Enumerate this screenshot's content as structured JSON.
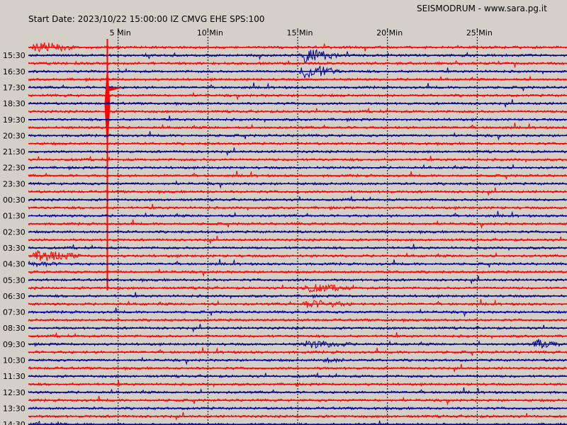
{
  "header": {
    "site": "SEISMODRUM - www.sara.pg.it",
    "start": "Start Date: 2023/10/22 15:00:00 IZ CMVG EHE SPS:100"
  },
  "colors": {
    "background": "#d4d0c8",
    "trace_a": "#ff0000",
    "trace_b": "#00008b",
    "grid": "#000000"
  },
  "chart_data": {
    "type": "line",
    "chart_kind": "helicorder",
    "title": "",
    "xlabel": "",
    "ylabel": "",
    "x_unit": "Min",
    "xlim": [
      0,
      30
    ],
    "x_ticks": [
      5,
      10,
      15,
      20,
      25
    ],
    "x_tick_labels": [
      "5 Min",
      "10 Min",
      "15 Min",
      "20 Min",
      "25 Min"
    ],
    "row_minutes": 15,
    "row_labels": [
      "15:30",
      "16:30",
      "17:30",
      "18:30",
      "19:30",
      "20:30",
      "21:30",
      "22:30",
      "23:30",
      "00:30",
      "01:30",
      "02:30",
      "03:30",
      "04:30",
      "05:30",
      "06:30",
      "07:30",
      "08:30",
      "09:30",
      "10:30",
      "11:30",
      "12:30",
      "13:30",
      "14:30"
    ],
    "traces_per_row": 2,
    "trace_color_order": [
      "red",
      "blue"
    ],
    "grid": true,
    "events": [
      {
        "row": "15:30",
        "trace": "blue",
        "type": "burst",
        "start_min": 15.0,
        "end_min": 17.5,
        "amplitude": 0.85
      },
      {
        "row": "15:30",
        "trace": "red",
        "type": "burst",
        "start_min": 0.0,
        "end_min": 3.0,
        "amplitude": 0.65
      },
      {
        "row": "16:30",
        "trace": "blue",
        "type": "burst",
        "start_min": 15.0,
        "end_min": 17.5,
        "amplitude": 0.85
      },
      {
        "row": "17:30",
        "trace": "red",
        "type": "spike",
        "start_min": 4.3,
        "end_min": 4.5,
        "amplitude": 1.0
      },
      {
        "row": "04:30",
        "trace": "blue",
        "type": "burst",
        "start_min": 0.0,
        "end_min": 2.3,
        "amplitude": 0.35
      },
      {
        "row": "04:30",
        "trace": "red",
        "type": "burst",
        "start_min": 0.0,
        "end_min": 3.2,
        "amplitude": 0.65
      },
      {
        "row": "06:30",
        "trace": "red",
        "type": "burst",
        "start_min": 15.0,
        "end_min": 18.5,
        "amplitude": 0.5
      },
      {
        "row": "07:30",
        "trace": "red",
        "type": "burst",
        "start_min": 15.0,
        "end_min": 18.5,
        "amplitude": 0.5
      },
      {
        "row": "09:30",
        "trace": "blue",
        "type": "burst",
        "start_min": 15.0,
        "end_min": 18.5,
        "amplitude": 0.5
      },
      {
        "row": "09:30",
        "trace": "blue",
        "type": "burst",
        "start_min": 28.0,
        "end_min": 30.0,
        "amplitude": 0.6
      },
      {
        "row": "10:30",
        "trace": "blue",
        "type": "burst",
        "start_min": 16.0,
        "end_min": 18.5,
        "amplitude": 0.3
      },
      {
        "row": "14:30",
        "trace": "blue",
        "type": "burst",
        "start_min": 0.0,
        "end_min": 3.5,
        "amplitude": 0.25
      }
    ]
  }
}
